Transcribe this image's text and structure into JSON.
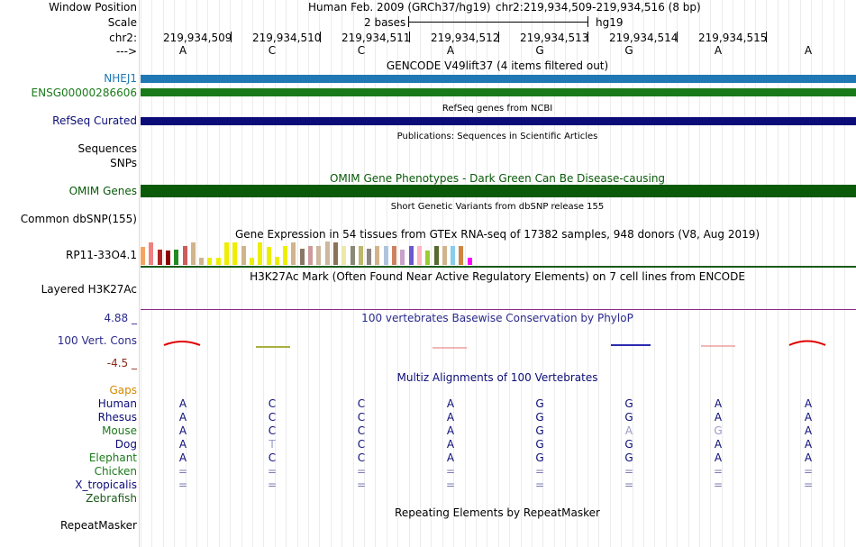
{
  "sidebar": {
    "window_position": "Window Position",
    "scale": "Scale",
    "chrom": "chr2:",
    "strand_arrow": "--->",
    "nhej1": "NHEJ1",
    "ensg": "ENSG00000286606",
    "refseq": "RefSeq Curated",
    "sequences": "Sequences",
    "snps": "SNPs",
    "omim": "OMIM Genes",
    "dbsnp": "Common dbSNP(155)",
    "rp11": "RP11-33O4.1",
    "h3k27ac": "Layered H3K27Ac",
    "cons_max": "4.88 _",
    "cons_label": "100 Vert. Cons",
    "cons_min": "-4.5 _",
    "gaps": "Gaps",
    "species": [
      "Human",
      "Rhesus",
      "Mouse",
      "Dog",
      "Elephant",
      "Chicken",
      "X_tropicalis",
      "Zebrafish"
    ],
    "repeatmasker": "RepeatMasker"
  },
  "header": {
    "assembly": "Human Feb. 2009 (GRCh37/hg19)",
    "position": "chr2:219,934,509-219,934,516 (8 bp)",
    "scale_text": "2 bases",
    "scale_db": "hg19"
  },
  "ruler": {
    "coords": [
      "219,934,509",
      "219,934,510",
      "219,934,511",
      "219,934,512",
      "219,934,513",
      "219,934,514",
      "219,934,515"
    ]
  },
  "sequence": [
    "A",
    "C",
    "C",
    "A",
    "G",
    "G",
    "A",
    "A"
  ],
  "tracks": {
    "gencode_title": "GENCODE V49lift37 (4 items filtered out)",
    "refseq_title": "RefSeq genes from NCBI",
    "pubs_title": "Publications: Sequences in Scientific Articles",
    "omim_title": "OMIM Gene Phenotypes - Dark Green Can Be Disease-causing",
    "dbsnp_title": "Short Genetic Variants from dbSNP release 155",
    "gtex_title": "Gene Expression in 54 tissues from GTEx RNA-seq of 17382 samples, 948 donors (V8, Aug 2019)",
    "h3k27ac_title": "H3K27Ac Mark (Often Found Near Active Regulatory Elements) on 7 cell lines from ENCODE",
    "phylop_title": "100 vertebrates Basewise Conservation by PhyloP",
    "multiz_title": "Multiz Alignments of 100 Vertebrates",
    "repeat_title": "Repeating Elements by RepeatMasker"
  },
  "alignment": {
    "Human": [
      "A",
      "C",
      "C",
      "A",
      "G",
      "G",
      "A",
      "A"
    ],
    "Rhesus": [
      "A",
      "C",
      "C",
      "A",
      "G",
      "G",
      "A",
      "A"
    ],
    "Mouse": [
      "A",
      "C",
      "C",
      "A",
      "G",
      "A",
      "G",
      "A"
    ],
    "Dog": [
      "A",
      "T",
      "C",
      "A",
      "G",
      "G",
      "A",
      "A"
    ],
    "Elephant": [
      "A",
      "C",
      "C",
      "A",
      "G",
      "G",
      "A",
      "A"
    ],
    "Chicken": [
      "=",
      "=",
      "=",
      "=",
      "=",
      "=",
      "=",
      "="
    ],
    "X_tropicalis": [
      "=",
      "=",
      "=",
      "=",
      "=",
      "=",
      "=",
      "="
    ]
  },
  "colors": {
    "nhej1": "#1f77b4",
    "ensg": "#1a7a1a",
    "refseq": "#0c0c78",
    "omim": "#0a5a0a",
    "gaps": "#d48a00",
    "conservation_pos": "#e00000",
    "conservation_neg": "#0000c8"
  },
  "gtex_colors": [
    "#f4a460",
    "#f08080",
    "#b22222",
    "#8b0000",
    "#228b22",
    "#cd5c5c",
    "#d2b48c",
    "#d2b48c",
    "#eeee00",
    "#eeee00",
    "#eeee00",
    "#eeee00",
    "#d2b48c",
    "#eeee00",
    "#eeee00",
    "#eeee00",
    "#eeee00",
    "#eeee00",
    "#d2b48c",
    "#8b7765",
    "#cd9b9b",
    "#cdb79e",
    "#cdb79e",
    "#8b7355",
    "#eee8aa",
    "#8b8878",
    "#bdb76b",
    "#8b8682",
    "#d2b48c",
    "#b0c4de",
    "#cd8162",
    "#c8a2c8",
    "#6a5acd",
    "#ffb6c1",
    "#9acd32",
    "#556b2f",
    "#d2b48c",
    "#87ceeb",
    "#cd853f",
    "#ff00ff"
  ],
  "gtex_values": [
    0.75,
    0.95,
    0.65,
    0.6,
    0.65,
    0.8,
    0.95,
    0.3,
    0.3,
    0.3,
    0.95,
    0.95,
    0.8,
    0.3,
    0.95,
    0.75,
    0.35,
    0.8,
    0.95,
    0.7,
    0.8,
    0.8,
    1.0,
    0.95,
    0.8,
    0.8,
    0.8,
    0.7,
    0.8,
    0.8,
    0.8,
    0.65,
    0.8,
    0.8,
    0.6,
    0.8,
    0.8,
    0.8,
    0.8,
    0.3
  ]
}
